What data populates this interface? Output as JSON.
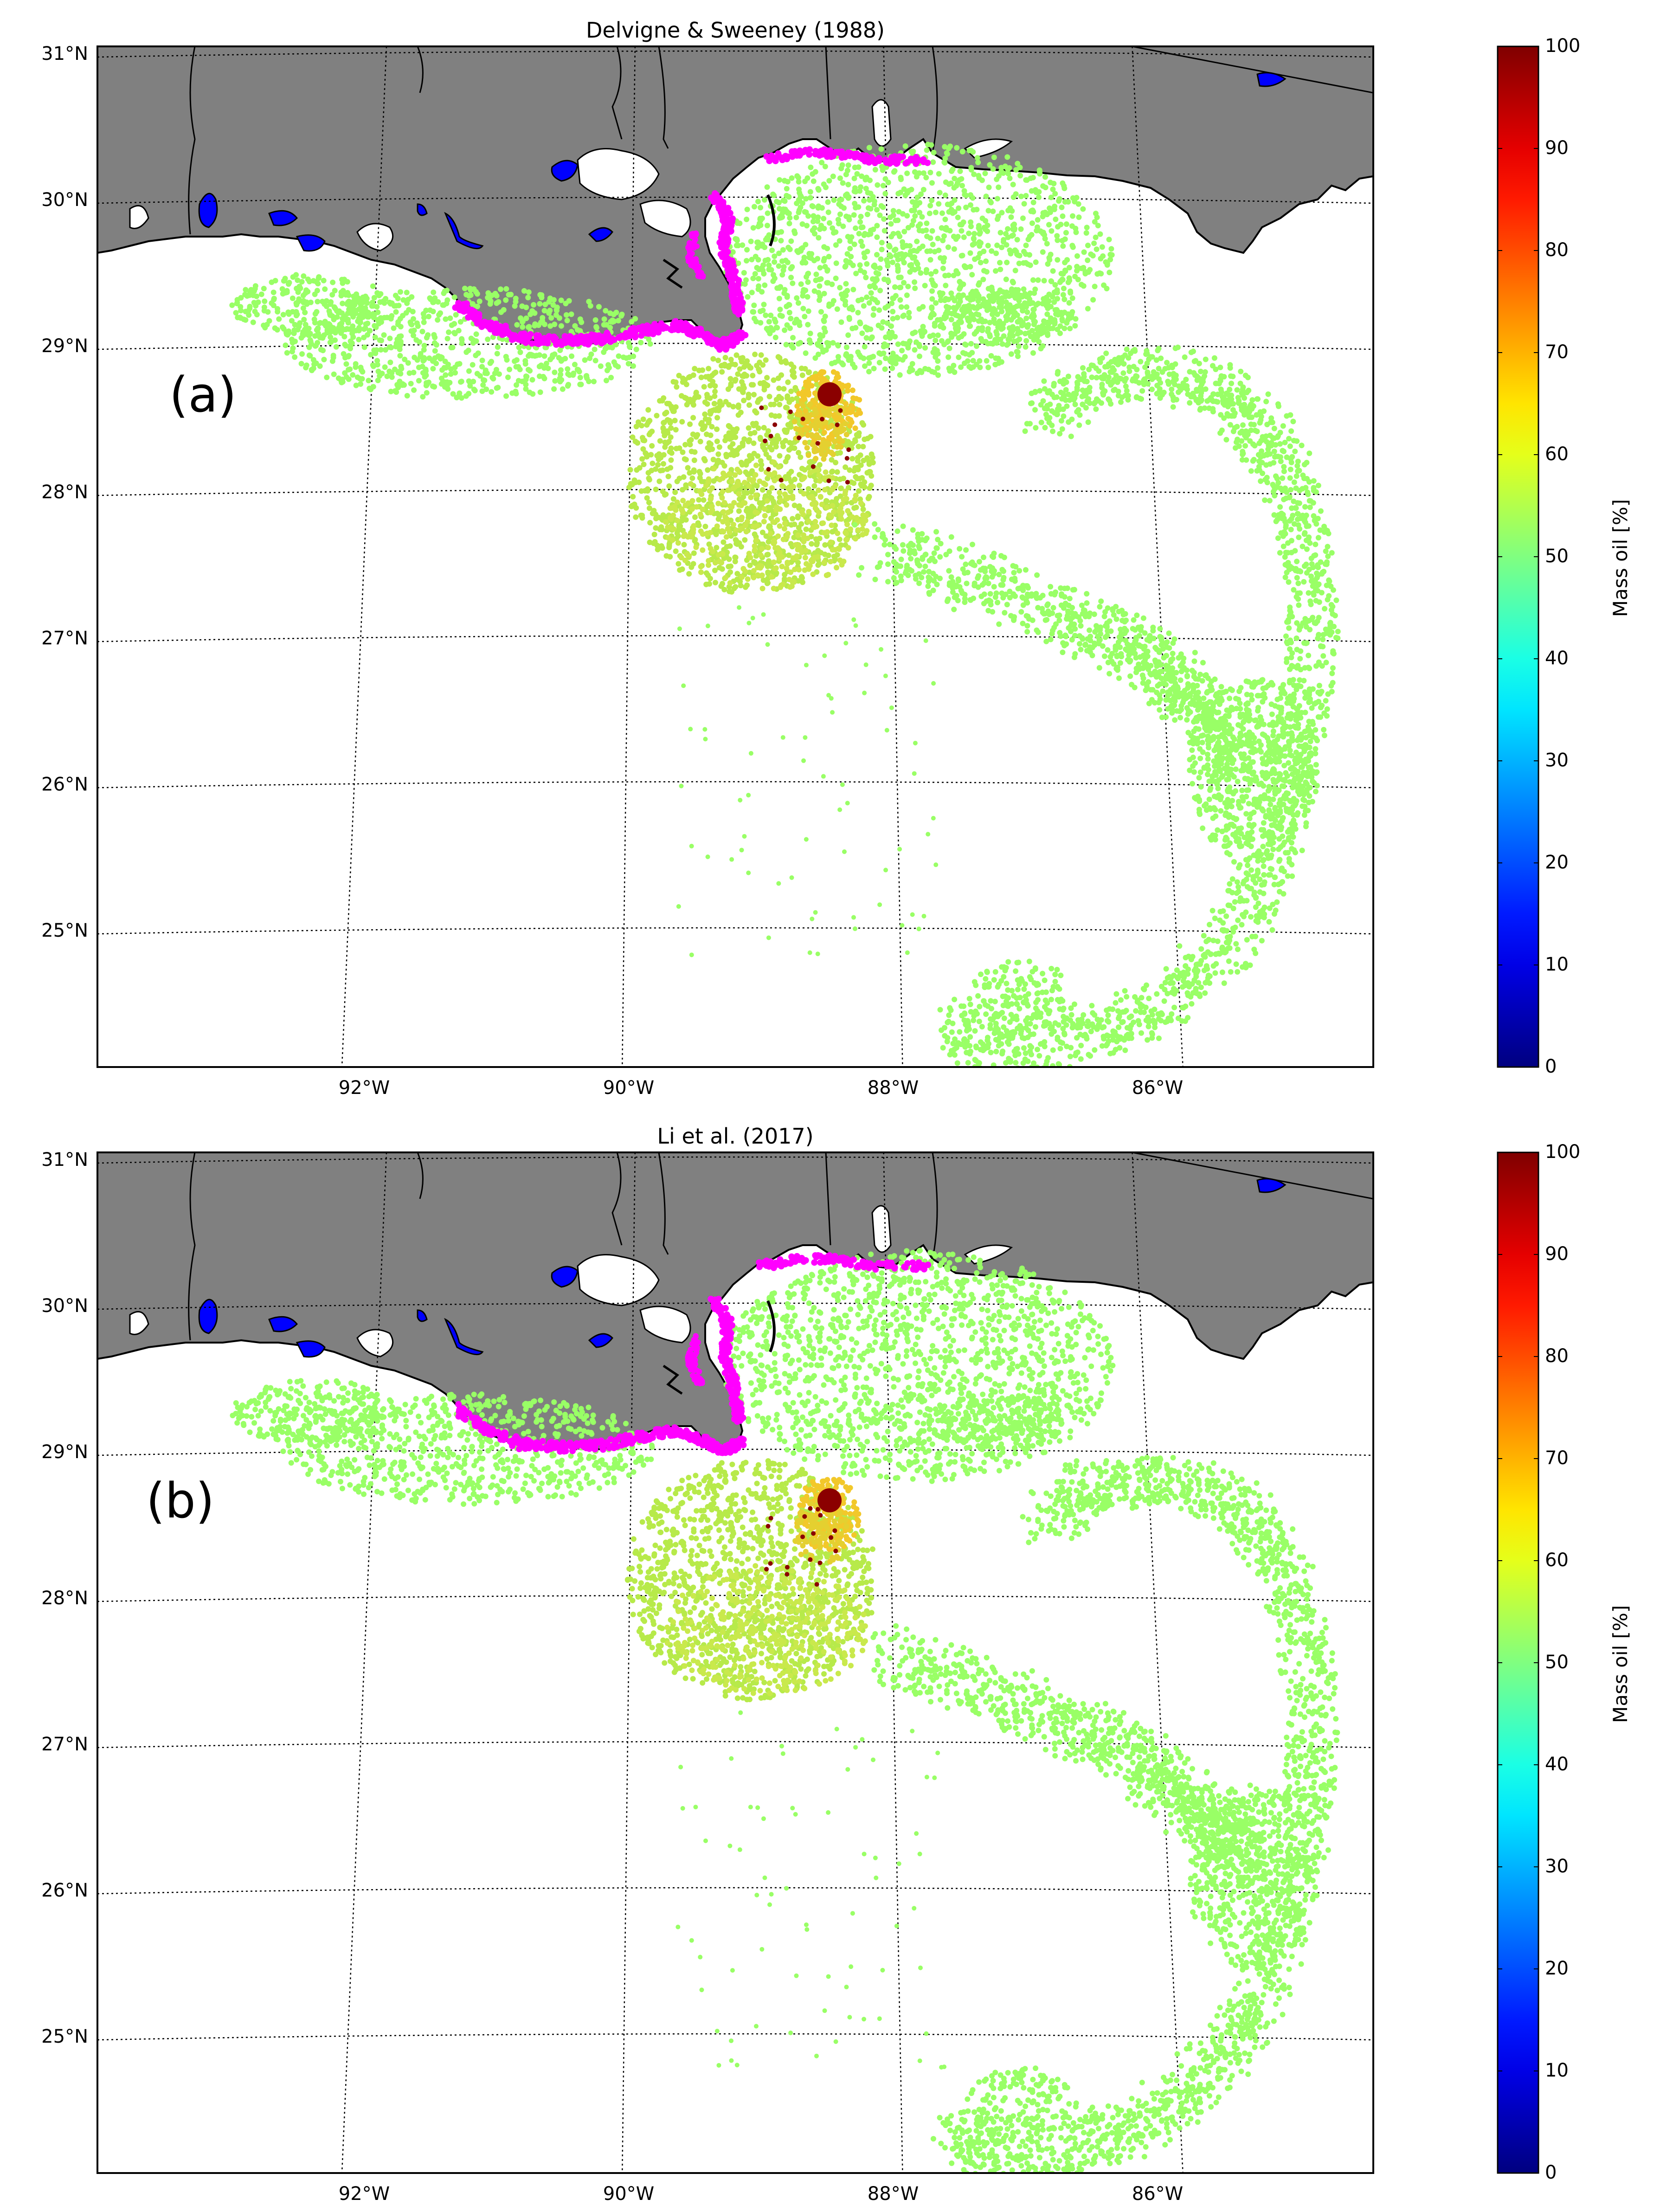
{
  "panels": [
    {
      "id": "a",
      "title": "Delvigne & Sweeney (1988)",
      "panel_label": "(a)",
      "colorbar_label": "Mass oil [%]",
      "lat_labels": [
        "31°N",
        "30°N",
        "29°N",
        "28°N",
        "27°N",
        "26°N",
        "25°N"
      ],
      "lon_labels": [
        "92°W",
        "90°W",
        "88°W",
        "86°W"
      ],
      "cb_ticks": [
        "100",
        "90",
        "80",
        "70",
        "60",
        "50",
        "40",
        "30",
        "20",
        "10",
        "0"
      ]
    },
    {
      "id": "b",
      "title": "Li et al. (2017)",
      "panel_label": "(b)",
      "colorbar_label": "Mass oil [%]",
      "lat_labels": [
        "31°N",
        "30°N",
        "29°N",
        "28°N",
        "27°N",
        "26°N",
        "25°N"
      ],
      "lon_labels": [
        "92°W",
        "90°W",
        "88°W",
        "86°W"
      ],
      "cb_ticks": [
        "100",
        "90",
        "80",
        "70",
        "60",
        "50",
        "40",
        "30",
        "20",
        "10",
        "0"
      ]
    }
  ],
  "colors": {
    "land": "#808080",
    "lakes": "#0000ff",
    "oil_main": "#99ff66",
    "oil_coast": "#ff00ff",
    "oil_source": "#8b0000",
    "grid": "#000000"
  },
  "chart_data": {
    "type": "scatter",
    "colorscale": "jet",
    "colorbar_range": [
      0,
      100
    ],
    "colorbar_label": "Mass oil [%]",
    "map_extent": {
      "lon": [
        -94,
        -84.3
      ],
      "lat": [
        24,
        31
      ]
    },
    "spill_source": {
      "lon": -88.4,
      "lat": 28.7,
      "mass_oil_pct": 100
    },
    "panels": [
      "Delvigne & Sweeney (1988)",
      "Li et al. (2017)"
    ]
  }
}
